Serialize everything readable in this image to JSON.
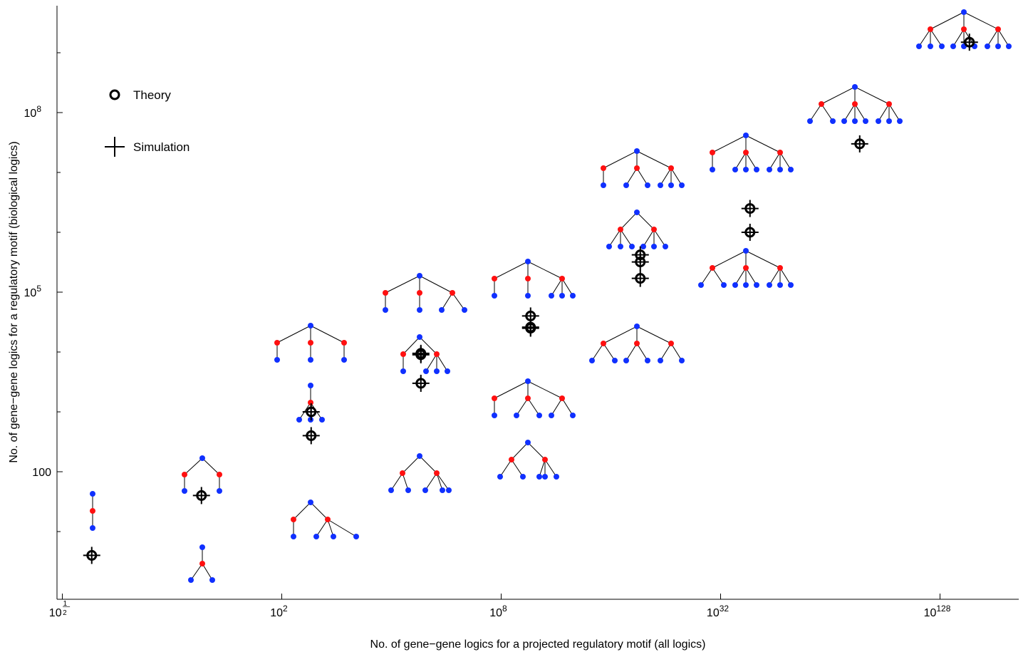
{
  "chart_data": {
    "type": "scatter",
    "xlabel": "No. of gene−gene logics for a projected regulatory motif (all logics)",
    "ylabel": "No. of gene−gene logics for a regulatory motif (biological logics)",
    "x_scale": "log (double-exponential: ticks at 10^(2^k))",
    "y_scale": "log",
    "x_ticks": [
      {
        "base": "10",
        "exp": "1/2",
        "num": "1",
        "den": "2",
        "value": 3.162
      },
      {
        "base": "10",
        "exp": "2",
        "value": 100
      },
      {
        "base": "10",
        "exp": "8",
        "value": 100000000
      },
      {
        "base": "10",
        "exp": "32",
        "value": 1e+32
      },
      {
        "base": "10",
        "exp": "128",
        "value": 1e+128
      }
    ],
    "y_ticks": [
      {
        "label": "100",
        "value": 100
      },
      {
        "base": "10",
        "exp": "5",
        "value": 100000
      },
      {
        "base": "10",
        "exp": "8",
        "value": 100000000
      }
    ],
    "ylim": [
      1.1,
      10000000000.0
    ],
    "grid": false,
    "legend": {
      "position": "top-left",
      "entries": [
        {
          "label": "Theory",
          "marker": "circle"
        },
        {
          "label": "Simulation",
          "marker": "cross"
        }
      ]
    },
    "series": [
      {
        "name": "Theory",
        "marker": "circle",
        "points": [
          {
            "x": 4,
            "y": 4
          },
          {
            "x": 16,
            "y": 40
          },
          {
            "x": 256,
            "y": 400
          },
          {
            "x": 256,
            "y": 1000
          },
          {
            "x": 65536,
            "y": 3000
          },
          {
            "x": 65536,
            "y": 9000
          },
          {
            "x": 65536,
            "y": 9500
          },
          {
            "x": 4290000000.0,
            "y": 25000
          },
          {
            "x": 4290000000.0,
            "y": 26000
          },
          {
            "x": 4290000000.0,
            "y": 40000
          },
          {
            "x": 1.84e+19,
            "y": 170000
          },
          {
            "x": 1.84e+19,
            "y": 320000
          },
          {
            "x": 1.84e+19,
            "y": 420000
          },
          {
            "x": 3.4e+38,
            "y": 1000000
          },
          {
            "x": 3.4e+38,
            "y": 2500000
          },
          {
            "x": 1.16e+77,
            "y": 30000000
          },
          {
            "x": 1.34e+154,
            "y": 1500000000
          }
        ]
      },
      {
        "name": "Simulation",
        "marker": "cross",
        "points": [
          {
            "x": 4,
            "y": 4
          },
          {
            "x": 16,
            "y": 40
          },
          {
            "x": 256,
            "y": 400
          },
          {
            "x": 256,
            "y": 1000
          },
          {
            "x": 65536,
            "y": 3000
          },
          {
            "x": 65536,
            "y": 9000
          },
          {
            "x": 65536,
            "y": 9500
          },
          {
            "x": 4290000000.0,
            "y": 25000
          },
          {
            "x": 4290000000.0,
            "y": 26000
          },
          {
            "x": 4290000000.0,
            "y": 40000
          },
          {
            "x": 1.84e+19,
            "y": 170000
          },
          {
            "x": 1.84e+19,
            "y": 320000
          },
          {
            "x": 1.84e+19,
            "y": 420000
          },
          {
            "x": 3.4e+38,
            "y": 1000000
          },
          {
            "x": 3.4e+38,
            "y": 2500000
          },
          {
            "x": 1.16e+77,
            "y": 30000000
          },
          {
            "x": 1.34e+154,
            "y": 1500000000
          }
        ]
      }
    ],
    "node_colors": {
      "root_and_leaf": "#1030ff",
      "intermediate": "#ff1010"
    },
    "motif_diagrams": "tree motif glyphs drawn beside each x group (blue roots/leaves, red intermediate nodes)"
  }
}
